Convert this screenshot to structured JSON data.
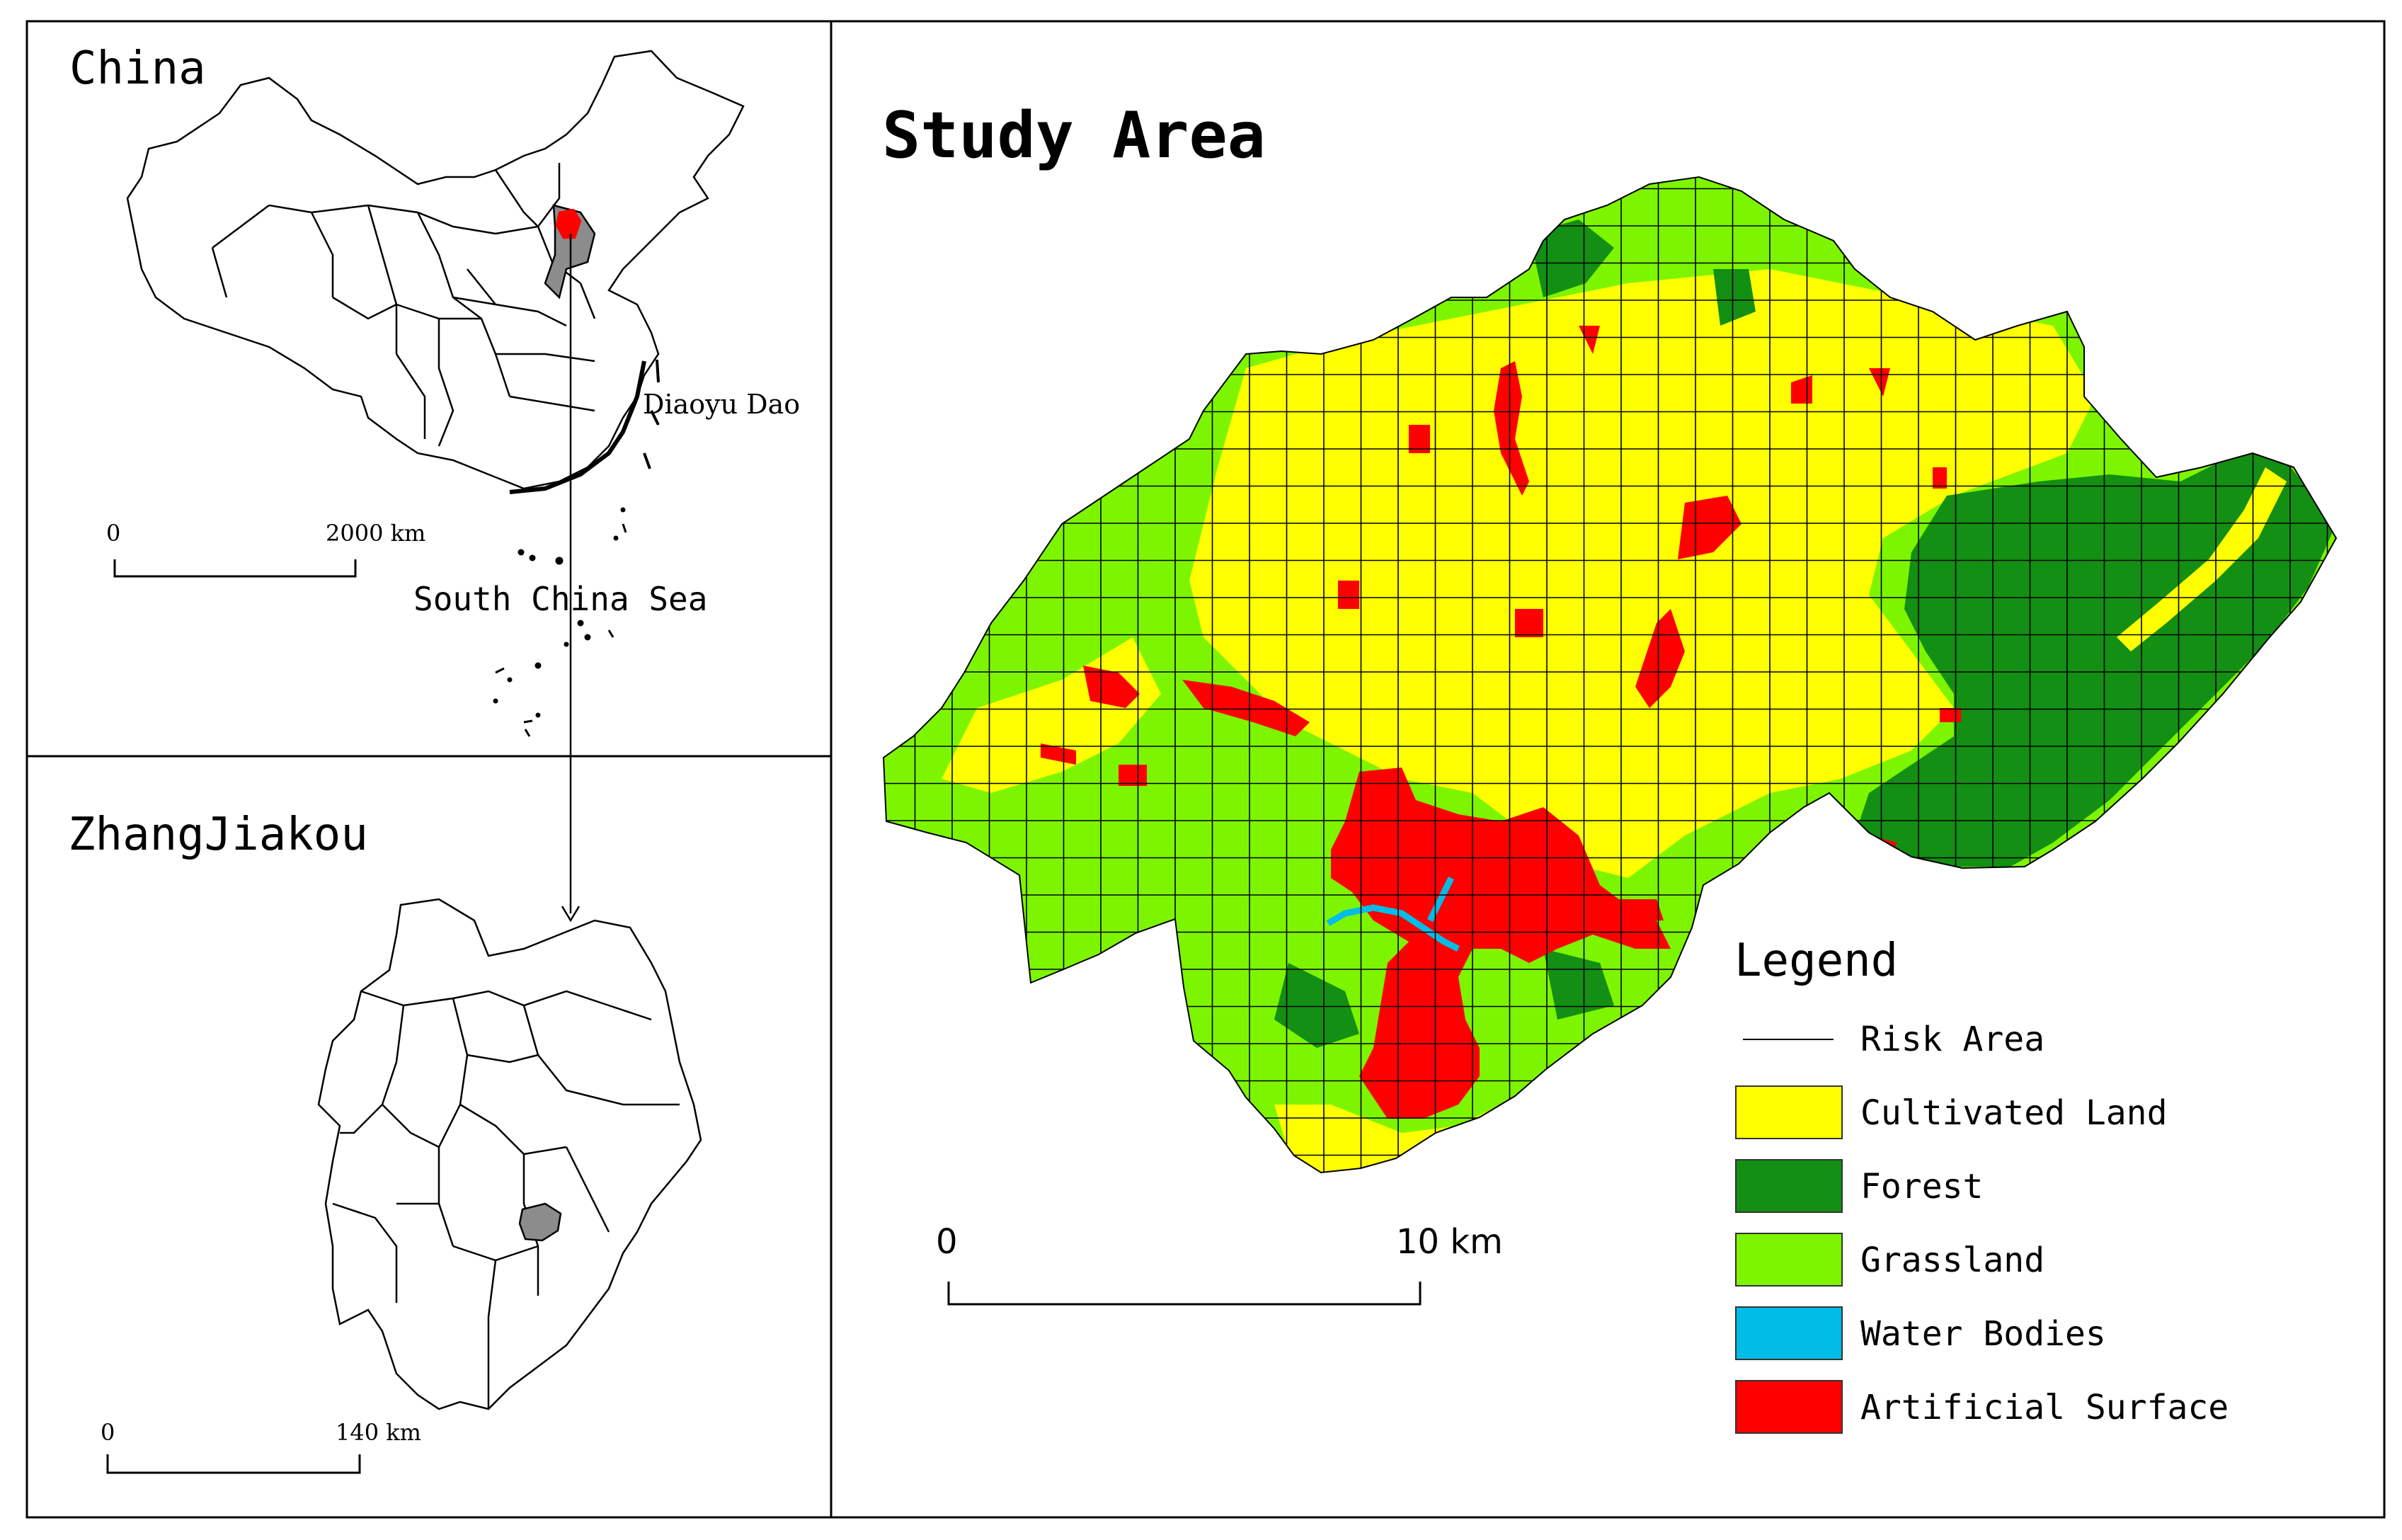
{
  "china_panel": {
    "title": "China",
    "annotation_island": "Diaoyu Dao",
    "annotation_sea": "South China Sea",
    "scale_start": "0",
    "scale_end": "2000 km"
  },
  "zhangjiakou_panel": {
    "title": "ZhangJiakou",
    "scale_start": "0",
    "scale_end": "140 km"
  },
  "study_panel": {
    "title": "Study Area",
    "scale_start": "0",
    "scale_end": "10 km"
  },
  "legend": {
    "title": "Legend",
    "items": [
      {
        "label": "Risk Area",
        "symbol": "line",
        "color": "#000000"
      },
      {
        "label": "Cultivated Land",
        "symbol": "box",
        "color": "#ffff00"
      },
      {
        "label": "Forest",
        "symbol": "box",
        "color": "#138f13"
      },
      {
        "label": "Grassland",
        "symbol": "box",
        "color": "#7df500"
      },
      {
        "label": "Water Bodies",
        "symbol": "box",
        "color": "#00bde8"
      },
      {
        "label": "Artificial Surface",
        "symbol": "box",
        "color": "#ff0000"
      }
    ]
  },
  "colors": {
    "highlight_region": "#ff0000",
    "selected_region": "#8c8c8c",
    "outline": "#000000"
  }
}
